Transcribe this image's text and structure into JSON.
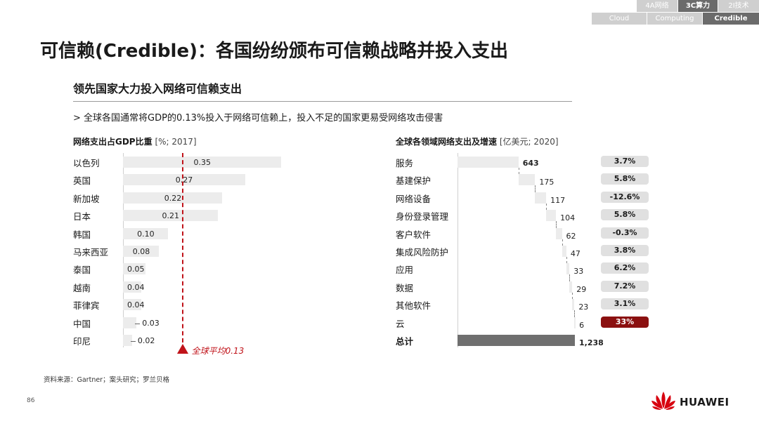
{
  "header": {
    "tabs_top": [
      {
        "label": "4A网络",
        "active": false
      },
      {
        "label": "3C算力",
        "active": true
      },
      {
        "label": "2I技术",
        "active": false
      }
    ],
    "tabs_bottom": [
      {
        "label": "Cloud",
        "active": false
      },
      {
        "label": "Computing",
        "active": false
      },
      {
        "label": "Credible",
        "active": true
      }
    ]
  },
  "title": "可信赖(Credible)：各国纷纷颁布可信赖战略并投入支出",
  "subtitle": "领先国家大力投入网络可信赖支出",
  "bullet": "> 全球各国通常将GDP的0.13%投入于网络可信赖上，投入不足的国家更易受网络攻击侵害",
  "chart_data": [
    {
      "type": "bar",
      "orientation": "horizontal",
      "title": "网络支出占GDP比重",
      "unit": "[%; 2017]",
      "categories": [
        "以色列",
        "英国",
        "新加坡",
        "日本",
        "韩国",
        "马来西亚",
        "泰国",
        "越南",
        "菲律宾",
        "中国",
        "印尼"
      ],
      "values": [
        0.35,
        0.27,
        0.22,
        0.21,
        0.1,
        0.08,
        0.05,
        0.04,
        0.04,
        0.03,
        0.02
      ],
      "value_labels": [
        "0.35",
        "0.27",
        "0.22",
        "0.21",
        "0.10",
        "0.08",
        "0.05",
        "0.04",
        "0.04",
        "0.03",
        "0.02"
      ],
      "reference_line": {
        "value": 0.13,
        "label": "全球平均0.13"
      },
      "xlim": [
        0,
        0.35
      ]
    },
    {
      "type": "waterfall",
      "title": "全球各领域网络支出及增速",
      "unit": "[亿美元; 2020]",
      "categories": [
        "服务",
        "基建保护",
        "网络设备",
        "身份登录管理",
        "客户软件",
        "集成风险防护",
        "应用",
        "数据",
        "其他软件",
        "云",
        "总计"
      ],
      "values": [
        643,
        175,
        117,
        104,
        62,
        47,
        33,
        29,
        23,
        6,
        1238
      ],
      "value_labels": [
        "643",
        "175",
        "117",
        "104",
        "62",
        "47",
        "33",
        "29",
        "23",
        "6",
        "1,238"
      ],
      "growth": [
        "3.7%",
        "5.8%",
        "-12.6%",
        "5.8%",
        "-0.3%",
        "3.8%",
        "6.2%",
        "7.2%",
        "3.1%",
        "33%",
        ""
      ],
      "total_index": 10,
      "xlim": [
        0,
        1238
      ]
    }
  ],
  "colors": {
    "bar": "#ececec",
    "total_bar": "#6f6f6f",
    "avg_line": "#c0131a",
    "highlight_badge": "#8b1010",
    "badge": "#e0e0e0"
  },
  "source": "资料来源：Gartner；案头研究；罗兰贝格",
  "page_number": "86",
  "brand": {
    "name": "HUAWEI",
    "logo": "huawei-petal-logo"
  }
}
